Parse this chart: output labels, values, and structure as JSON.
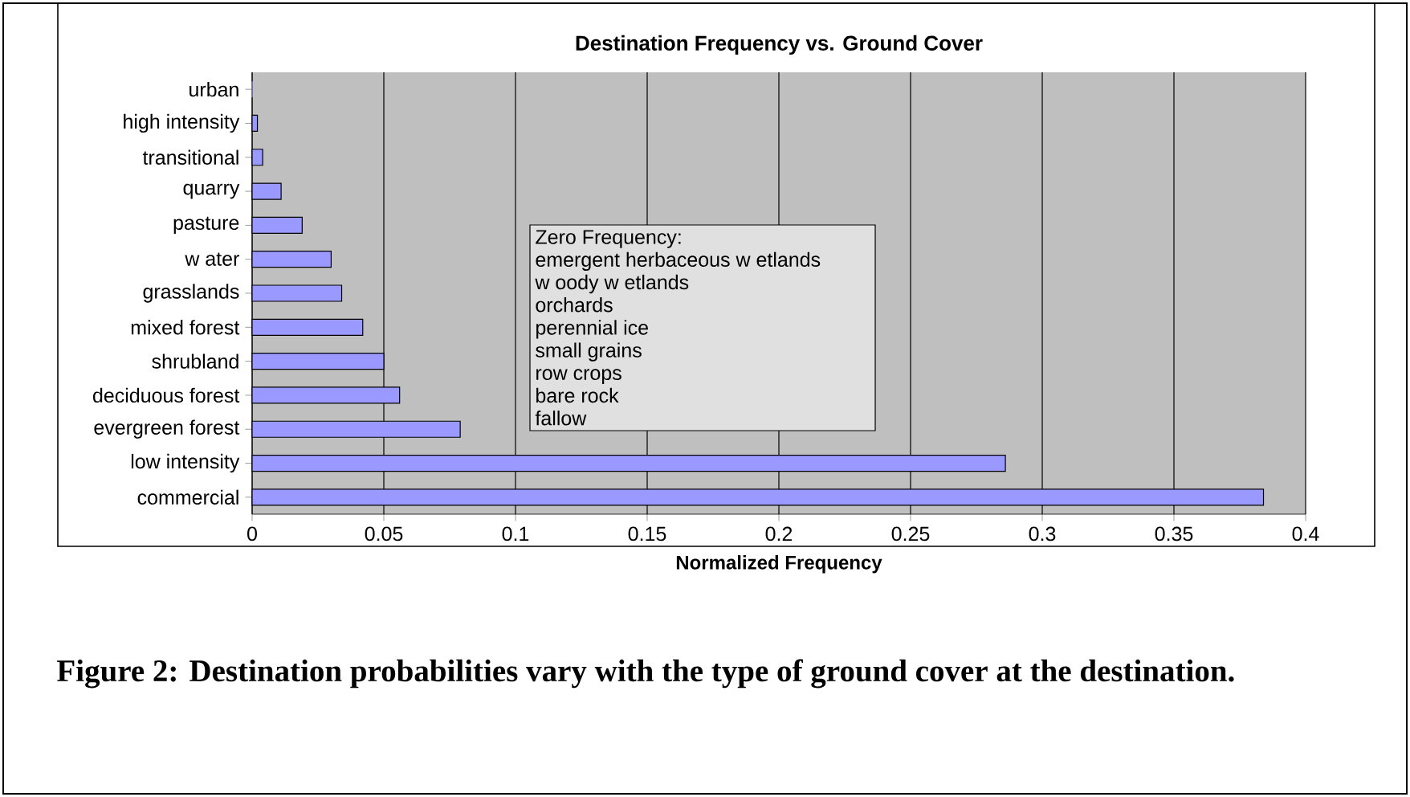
{
  "chart_data": {
    "type": "bar",
    "orientation": "horizontal",
    "title": "Destination Frequency vs. Ground Cover",
    "xlabel": "Normalized Frequency",
    "categories": [
      "urban",
      "high intensity",
      "transitional",
      "quarry",
      "pasture",
      "w ater",
      "grasslands",
      "mixed forest",
      "shrubland",
      "deciduous forest",
      "evergreen forest",
      "low intensity",
      "commercial"
    ],
    "values": [
      0,
      0.002,
      0.004,
      0.011,
      0.019,
      0.03,
      0.034,
      0.042,
      0.05,
      0.056,
      0.079,
      0.286,
      0.384
    ],
    "color": "#9999ff",
    "xlim": [
      0,
      0.4
    ],
    "xticks": [
      0,
      0.05,
      0.1,
      0.15,
      0.2,
      0.25,
      0.3,
      0.35,
      0.4
    ],
    "grid": "x",
    "annotations": [
      "Zero Frequency:",
      "emergent herbaceous w etlands",
      "w oody w etlands",
      "orchards",
      "perennial ice",
      "small grains",
      "row crops",
      "bare rock",
      "fallow",
      "Figure 2: Destination probabilities vary with the type of ground cover at the destination."
    ]
  }
}
